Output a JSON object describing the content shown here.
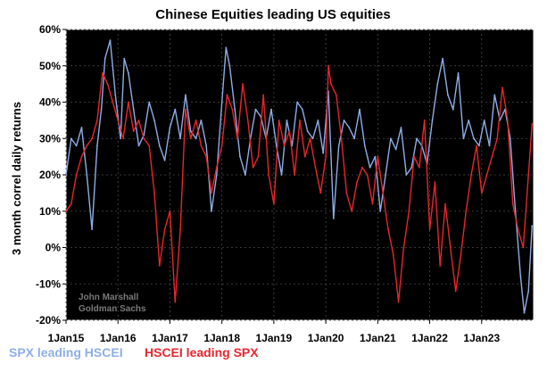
{
  "chart_data": {
    "type": "line",
    "title": "Chinese Equities leading US equities",
    "ylabel": "3 month correl daily returns",
    "xlabel": "",
    "ylim": [
      -0.2,
      0.6
    ],
    "xlim": [
      2015.0,
      2024.0
    ],
    "y_ticks": [
      {
        "value": -0.2,
        "label": "-20%"
      },
      {
        "value": -0.1,
        "label": "-10%"
      },
      {
        "value": 0.0,
        "label": "0%"
      },
      {
        "value": 0.1,
        "label": "10%"
      },
      {
        "value": 0.2,
        "label": "20%"
      },
      {
        "value": 0.3,
        "label": "30%"
      },
      {
        "value": 0.4,
        "label": "40%"
      },
      {
        "value": 0.5,
        "label": "50%"
      },
      {
        "value": 0.6,
        "label": "60%"
      }
    ],
    "x_ticks": [
      {
        "value": 2015,
        "label": "1Jan15"
      },
      {
        "value": 2016,
        "label": "1Jan16"
      },
      {
        "value": 2017,
        "label": "1Jan17"
      },
      {
        "value": 2018,
        "label": "1Jan18"
      },
      {
        "value": 2019,
        "label": "1Jan19"
      },
      {
        "value": 2020,
        "label": "1Jan20"
      },
      {
        "value": 2021,
        "label": "1Jan21"
      },
      {
        "value": 2022,
        "label": "1Jan22"
      },
      {
        "value": 2023,
        "label": "1Jan23"
      }
    ],
    "grid": true,
    "background": "#000000",
    "annotation": [
      "John Marshall",
      "Goldman Sachs"
    ],
    "legend_position": "bottom-left",
    "series": [
      {
        "name": "SPX leading HSCEI",
        "color": "#8eaee6",
        "x": [
          2015.0,
          2015.1,
          2015.2,
          2015.3,
          2015.4,
          2015.5,
          2015.6,
          2015.68,
          2015.75,
          2015.85,
          2015.95,
          2016.05,
          2016.12,
          2016.2,
          2016.3,
          2016.4,
          2016.5,
          2016.6,
          2016.7,
          2016.8,
          2016.9,
          2017.0,
          2017.1,
          2017.2,
          2017.3,
          2017.4,
          2017.5,
          2017.6,
          2017.7,
          2017.8,
          2017.9,
          2018.0,
          2018.08,
          2018.15,
          2018.25,
          2018.35,
          2018.45,
          2018.55,
          2018.65,
          2018.75,
          2018.85,
          2018.95,
          2019.05,
          2019.15,
          2019.25,
          2019.35,
          2019.45,
          2019.55,
          2019.65,
          2019.75,
          2019.85,
          2019.95,
          2020.05,
          2020.15,
          2020.25,
          2020.35,
          2020.45,
          2020.55,
          2020.65,
          2020.75,
          2020.85,
          2020.95,
          2021.05,
          2021.15,
          2021.25,
          2021.35,
          2021.45,
          2021.55,
          2021.65,
          2021.75,
          2021.85,
          2021.95,
          2022.05,
          2022.15,
          2022.25,
          2022.35,
          2022.45,
          2022.55,
          2022.65,
          2022.75,
          2022.85,
          2022.95,
          2023.05,
          2023.15,
          2023.25,
          2023.35,
          2023.45,
          2023.55,
          2023.65,
          2023.75,
          2023.82,
          2023.9,
          2023.97
        ],
        "values": [
          0.2,
          0.3,
          0.28,
          0.33,
          0.2,
          0.05,
          0.28,
          0.38,
          0.52,
          0.57,
          0.42,
          0.3,
          0.52,
          0.48,
          0.38,
          0.28,
          0.31,
          0.4,
          0.35,
          0.28,
          0.24,
          0.33,
          0.38,
          0.3,
          0.42,
          0.32,
          0.3,
          0.35,
          0.28,
          0.1,
          0.2,
          0.4,
          0.55,
          0.5,
          0.38,
          0.25,
          0.2,
          0.3,
          0.38,
          0.36,
          0.3,
          0.38,
          0.28,
          0.2,
          0.35,
          0.28,
          0.4,
          0.38,
          0.32,
          0.3,
          0.35,
          0.26,
          0.43,
          0.08,
          0.28,
          0.35,
          0.33,
          0.3,
          0.38,
          0.28,
          0.22,
          0.25,
          0.1,
          0.2,
          0.3,
          0.27,
          0.33,
          0.2,
          0.22,
          0.3,
          0.28,
          0.23,
          0.35,
          0.45,
          0.52,
          0.42,
          0.38,
          0.48,
          0.3,
          0.35,
          0.3,
          0.28,
          0.35,
          0.28,
          0.42,
          0.35,
          0.38,
          0.3,
          0.1,
          -0.08,
          -0.18,
          -0.12,
          0.06
        ]
      },
      {
        "name": "HSCEI leading SPX",
        "color": "#e8262e",
        "x": [
          2015.0,
          2015.1,
          2015.2,
          2015.3,
          2015.4,
          2015.5,
          2015.6,
          2015.7,
          2015.8,
          2015.9,
          2016.0,
          2016.1,
          2016.2,
          2016.3,
          2016.4,
          2016.5,
          2016.6,
          2016.7,
          2016.8,
          2016.9,
          2017.0,
          2017.1,
          2017.2,
          2017.3,
          2017.4,
          2017.5,
          2017.6,
          2017.7,
          2017.8,
          2017.9,
          2018.0,
          2018.1,
          2018.2,
          2018.3,
          2018.4,
          2018.5,
          2018.6,
          2018.7,
          2018.8,
          2018.9,
          2019.0,
          2019.1,
          2019.2,
          2019.3,
          2019.4,
          2019.5,
          2019.6,
          2019.7,
          2019.8,
          2019.9,
          2020.0,
          2020.05,
          2020.1,
          2020.2,
          2020.3,
          2020.4,
          2020.5,
          2020.6,
          2020.7,
          2020.8,
          2020.9,
          2021.0,
          2021.1,
          2021.2,
          2021.3,
          2021.4,
          2021.5,
          2021.6,
          2021.7,
          2021.8,
          2021.9,
          2022.0,
          2022.1,
          2022.2,
          2022.3,
          2022.4,
          2022.5,
          2022.6,
          2022.7,
          2022.8,
          2022.9,
          2023.0,
          2023.1,
          2023.2,
          2023.3,
          2023.4,
          2023.5,
          2023.6,
          2023.7,
          2023.8,
          2023.9,
          2023.97
        ],
        "values": [
          0.1,
          0.12,
          0.2,
          0.25,
          0.28,
          0.3,
          0.35,
          0.48,
          0.45,
          0.4,
          0.35,
          0.3,
          0.4,
          0.32,
          0.35,
          0.3,
          0.28,
          0.15,
          -0.05,
          0.05,
          0.1,
          -0.15,
          0.05,
          0.38,
          0.3,
          0.35,
          0.28,
          0.25,
          0.15,
          0.22,
          0.28,
          0.42,
          0.38,
          0.3,
          0.45,
          0.35,
          0.22,
          0.25,
          0.42,
          0.2,
          0.12,
          0.35,
          0.28,
          0.32,
          0.2,
          0.35,
          0.25,
          0.3,
          0.22,
          0.15,
          0.25,
          0.5,
          0.45,
          0.42,
          0.3,
          0.15,
          0.1,
          0.18,
          0.22,
          0.2,
          0.12,
          0.25,
          0.15,
          0.05,
          -0.02,
          -0.15,
          0.0,
          0.1,
          0.25,
          0.22,
          0.35,
          0.05,
          0.18,
          -0.05,
          0.12,
          0.0,
          -0.12,
          -0.02,
          0.1,
          0.2,
          0.28,
          0.15,
          0.2,
          0.25,
          0.3,
          0.44,
          0.35,
          0.12,
          0.05,
          0.0,
          0.2,
          0.34
        ]
      }
    ]
  }
}
